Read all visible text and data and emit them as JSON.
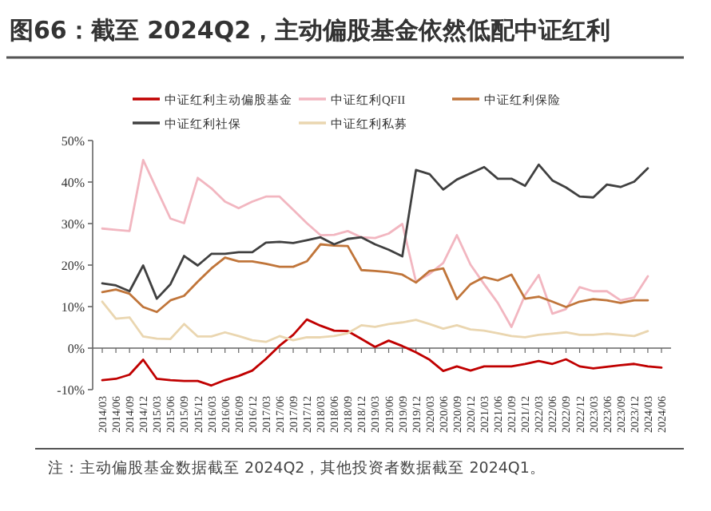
{
  "chart_data": {
    "type": "line",
    "title": "图66：截至 2024Q2，主动偏股基金依然低配中证红利",
    "categories": [
      "2014/03",
      "2014/06",
      "2014/09",
      "2014/12",
      "2015/03",
      "2015/06",
      "2015/09",
      "2015/12",
      "2016/03",
      "2016/06",
      "2016/09",
      "2016/12",
      "2017/03",
      "2017/06",
      "2017/09",
      "2017/12",
      "2018/03",
      "2018/06",
      "2018/09",
      "2018/12",
      "2019/03",
      "2019/06",
      "2019/09",
      "2019/12",
      "2020/03",
      "2020/06",
      "2020/09",
      "2020/12",
      "2021/03",
      "2021/06",
      "2021/09",
      "2021/12",
      "2022/03",
      "2022/06",
      "2022/09",
      "2022/12",
      "2023/03",
      "2023/06",
      "2023/09",
      "2023/12",
      "2024/03",
      "2024/06"
    ],
    "series": [
      {
        "name": "中证红利主动偏股基金",
        "color": "#c00000",
        "values": [
          -7.7,
          -7.4,
          -6.4,
          -2.8,
          -7.4,
          -7.7,
          -7.9,
          -7.9,
          -9,
          -7.7,
          -6.7,
          -5.4,
          -2.6,
          0.6,
          3.2,
          6.9,
          5.4,
          4.2,
          4.1,
          2.2,
          0.3,
          1.8,
          0.5,
          -1,
          -2.8,
          -5.5,
          -4.4,
          -5.4,
          -4.4,
          -4.4,
          -4.4,
          -3.8,
          -3.1,
          -3.8,
          -2.7,
          -4.4,
          -4.9,
          -4.5,
          -4.1,
          -3.8,
          -4.4,
          -4.7
        ]
      },
      {
        "name": "中证红利QFII",
        "color": "#f2b6c0",
        "values": [
          28.8,
          28.5,
          28.2,
          45.3,
          38.2,
          31.2,
          30.1,
          41,
          38.5,
          35.3,
          33.7,
          35.3,
          36.5,
          36.5,
          33.3,
          30.1,
          27.2,
          27.3,
          28.2,
          26.7,
          26.5,
          27.6,
          29.9,
          16,
          17.9,
          20.5,
          27.2,
          20.1,
          15.4,
          10.9,
          5.1,
          12.8,
          17.6,
          8.3,
          9.4,
          14.7,
          13.7,
          13.7,
          11.5,
          12.2,
          17.3,
          null
        ]
      },
      {
        "name": "中证红利保险",
        "color": "#c0753a",
        "values": [
          13.5,
          14.1,
          13.1,
          9.9,
          8.7,
          11.5,
          12.6,
          16,
          19.2,
          21.8,
          20.9,
          20.9,
          20.3,
          19.6,
          19.6,
          20.9,
          25,
          24.7,
          24.6,
          18.8,
          18.6,
          18.3,
          17.7,
          15.8,
          18.6,
          19.2,
          11.8,
          15.4,
          17.1,
          16.3,
          17.7,
          11.9,
          12.4,
          11.2,
          9.9,
          11.2,
          11.8,
          11.5,
          10.9,
          11.5,
          11.5,
          null
        ]
      },
      {
        "name": "中证红利社保",
        "color": "#404040",
        "values": [
          15.6,
          15.1,
          13.7,
          19.9,
          11.9,
          15.4,
          22.2,
          19.9,
          22.7,
          22.7,
          23.1,
          23.1,
          25.4,
          25.6,
          25.3,
          26,
          26.7,
          25,
          26.3,
          26.7,
          25,
          23.7,
          22.1,
          42.9,
          41.9,
          38.2,
          40.6,
          42.1,
          43.6,
          40.8,
          40.8,
          39.1,
          44.2,
          40.4,
          38.7,
          36.5,
          36.3,
          39.4,
          38.8,
          40.1,
          43.3,
          null
        ]
      },
      {
        "name": "中证红利私募",
        "color": "#ead6b0",
        "values": [
          11.2,
          7.1,
          7.4,
          2.8,
          2.3,
          2.2,
          5.8,
          2.8,
          2.8,
          3.8,
          2.9,
          1.9,
          1.5,
          2.9,
          1.9,
          2.6,
          2.6,
          2.9,
          3.6,
          5.5,
          5.1,
          5.8,
          6.2,
          6.8,
          5.8,
          4.7,
          5.5,
          4.5,
          4.2,
          3.6,
          2.9,
          2.6,
          3.2,
          3.5,
          3.8,
          3.2,
          3.2,
          3.5,
          3.2,
          2.9,
          4.1,
          null
        ]
      }
    ],
    "ylim": [
      -10,
      50
    ],
    "yticks": [
      {
        "value": -10,
        "label": "-10%"
      },
      {
        "value": 0,
        "label": "0%"
      },
      {
        "value": 10,
        "label": "10%"
      },
      {
        "value": 20,
        "label": "20%"
      },
      {
        "value": 30,
        "label": "30%"
      },
      {
        "value": 40,
        "label": "40%"
      },
      {
        "value": 50,
        "label": "50%"
      }
    ],
    "legend": "top",
    "marker": "none",
    "line_style": "solid",
    "annotations": [
      "注：主动偏股基金数据截至 2024Q2，其他投资者数据截至 2024Q1。"
    ]
  }
}
